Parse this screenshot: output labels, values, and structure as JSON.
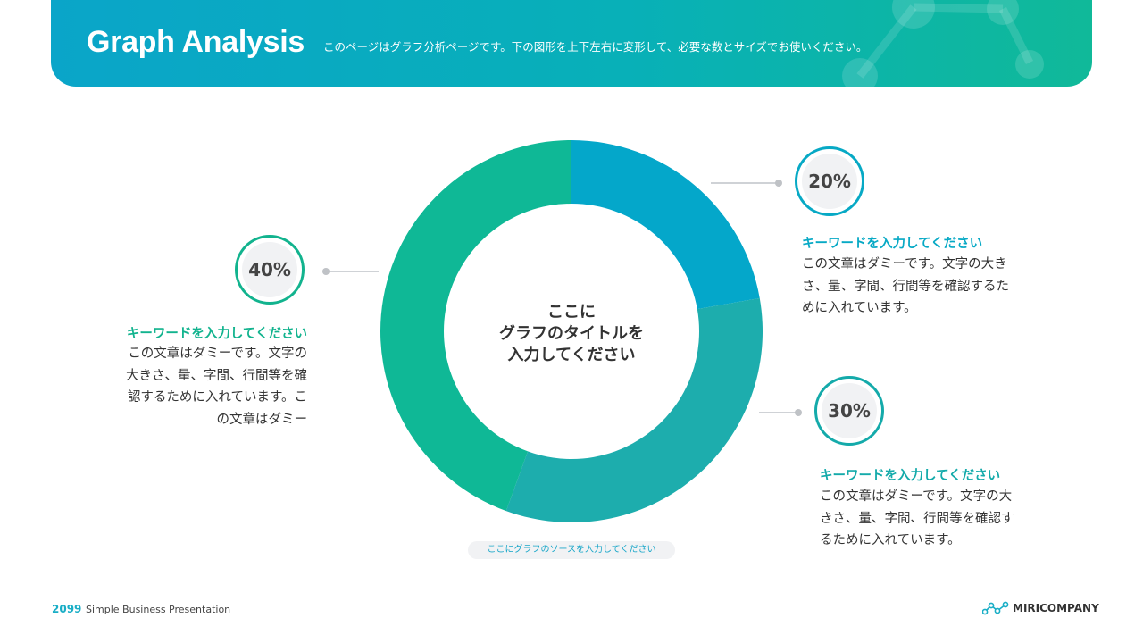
{
  "header": {
    "title": "Graph Analysis",
    "subtitle": "このページはグラフ分析ページです。下の図形を上下左右に変形して、必要な数とサイズでお使いください。"
  },
  "chart_data": {
    "type": "pie",
    "donut": true,
    "title_lines": [
      "ここに",
      "グラフのタイトルを",
      "入力してください"
    ],
    "slices": [
      {
        "label": "20%",
        "value": 20,
        "color": "#04a7ca"
      },
      {
        "label": "30%",
        "value": 30,
        "color": "#1dadad"
      },
      {
        "label": "40%",
        "value": 40,
        "color": "#0fb896"
      }
    ],
    "legend": [
      {
        "percent": "40%",
        "keyword": "キーワードを入力してください",
        "color": "#12b38e",
        "lines": [
          "この文章はダミーです。文字の",
          "大きさ、量、字間、行間等を確",
          "認するために入れています。こ",
          "の文章はダミー"
        ]
      },
      {
        "percent": "20%",
        "keyword": "キーワードを入力してください",
        "color": "#07a9c5",
        "lines": [
          "この文章はダミーです。文字の大き",
          "さ、量、字間、行間等を確認するた",
          "めに入れています。"
        ]
      },
      {
        "percent": "30%",
        "keyword": "キーワードを入力してください",
        "color": "#14aaaa",
        "lines": [
          "この文章はダミーです。文字の大",
          "きさ、量、字間、行間等を確認す",
          "るために入れています。"
        ]
      }
    ],
    "source": "ここにグラフのソースを入力してください"
  },
  "footer": {
    "year": "2099",
    "text": "Simple Business Presentation",
    "brand": "MIRICOMPANY",
    "brand_color": "#1aaec6"
  }
}
